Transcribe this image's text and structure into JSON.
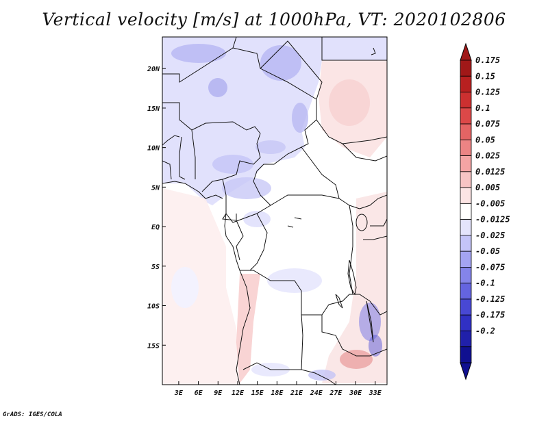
{
  "title": "Vertical velocity [m/s] at 1000hPa, VT: 2020102806",
  "credit": "GrADS: IGES/COLA",
  "map": {
    "lon_labels": [
      "3E",
      "6E",
      "9E",
      "12E",
      "15E",
      "18E",
      "21E",
      "24E",
      "27E",
      "30E",
      "33E"
    ],
    "lat_labels": [
      "20N",
      "15N",
      "10N",
      "5N",
      "EQ",
      "5S",
      "10S",
      "15S"
    ],
    "extent": {
      "lon_min": 0.5,
      "lon_max": 34.8,
      "lat_min": -20,
      "lat_max": 24
    }
  },
  "colorbar": {
    "labels": [
      "0.175",
      "0.15",
      "0.125",
      "0.1",
      "0.075",
      "0.05",
      "0.025",
      "0.0125",
      "0.005",
      "-0.005",
      "-0.0125",
      "-0.025",
      "-0.05",
      "-0.075",
      "-0.1",
      "-0.125",
      "-0.175",
      "-0.2"
    ],
    "colors": [
      "#a01818",
      "#b82020",
      "#cc3030",
      "#dc4848",
      "#e46464",
      "#ec8484",
      "#f4a4a4",
      "#f8c4c4",
      "#fce4e4",
      "#ffffff",
      "#e4e4fc",
      "#c4c4f8",
      "#a4a4f2",
      "#8484ea",
      "#6464e0",
      "#4848d4",
      "#3030c4",
      "#2020aa",
      "#101090"
    ],
    "top_color": "#a01818",
    "bottom_color": "#101090"
  }
}
